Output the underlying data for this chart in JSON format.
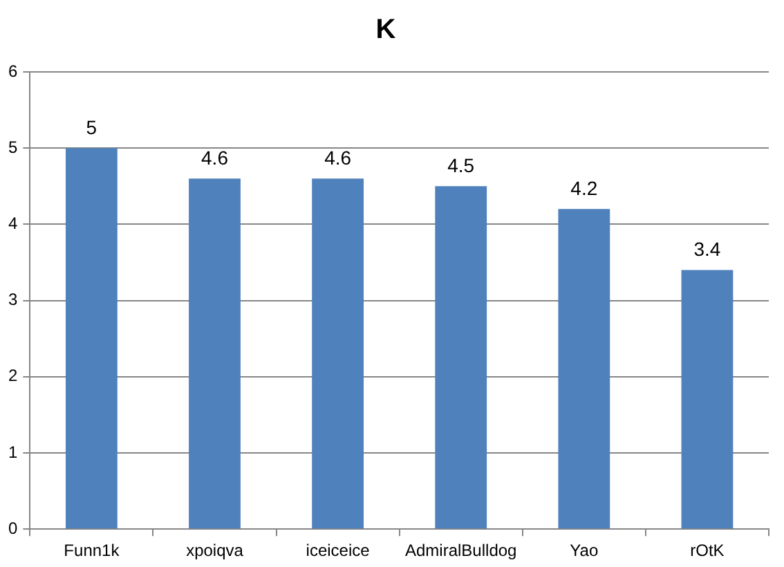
{
  "chart_data": {
    "type": "bar",
    "title": "K",
    "categories": [
      "Funn1k",
      "xpoiqva",
      "iceiceice",
      "AdmiralBulldog",
      "Yao",
      "rOtK"
    ],
    "values": [
      5,
      4.6,
      4.6,
      4.5,
      4.2,
      3.4
    ],
    "color": "#4f81bd",
    "ylim": [
      0,
      6
    ],
    "yticks": [
      0,
      1,
      2,
      3,
      4,
      5,
      6
    ],
    "grid": "y",
    "data_labels": true,
    "legend": false
  }
}
